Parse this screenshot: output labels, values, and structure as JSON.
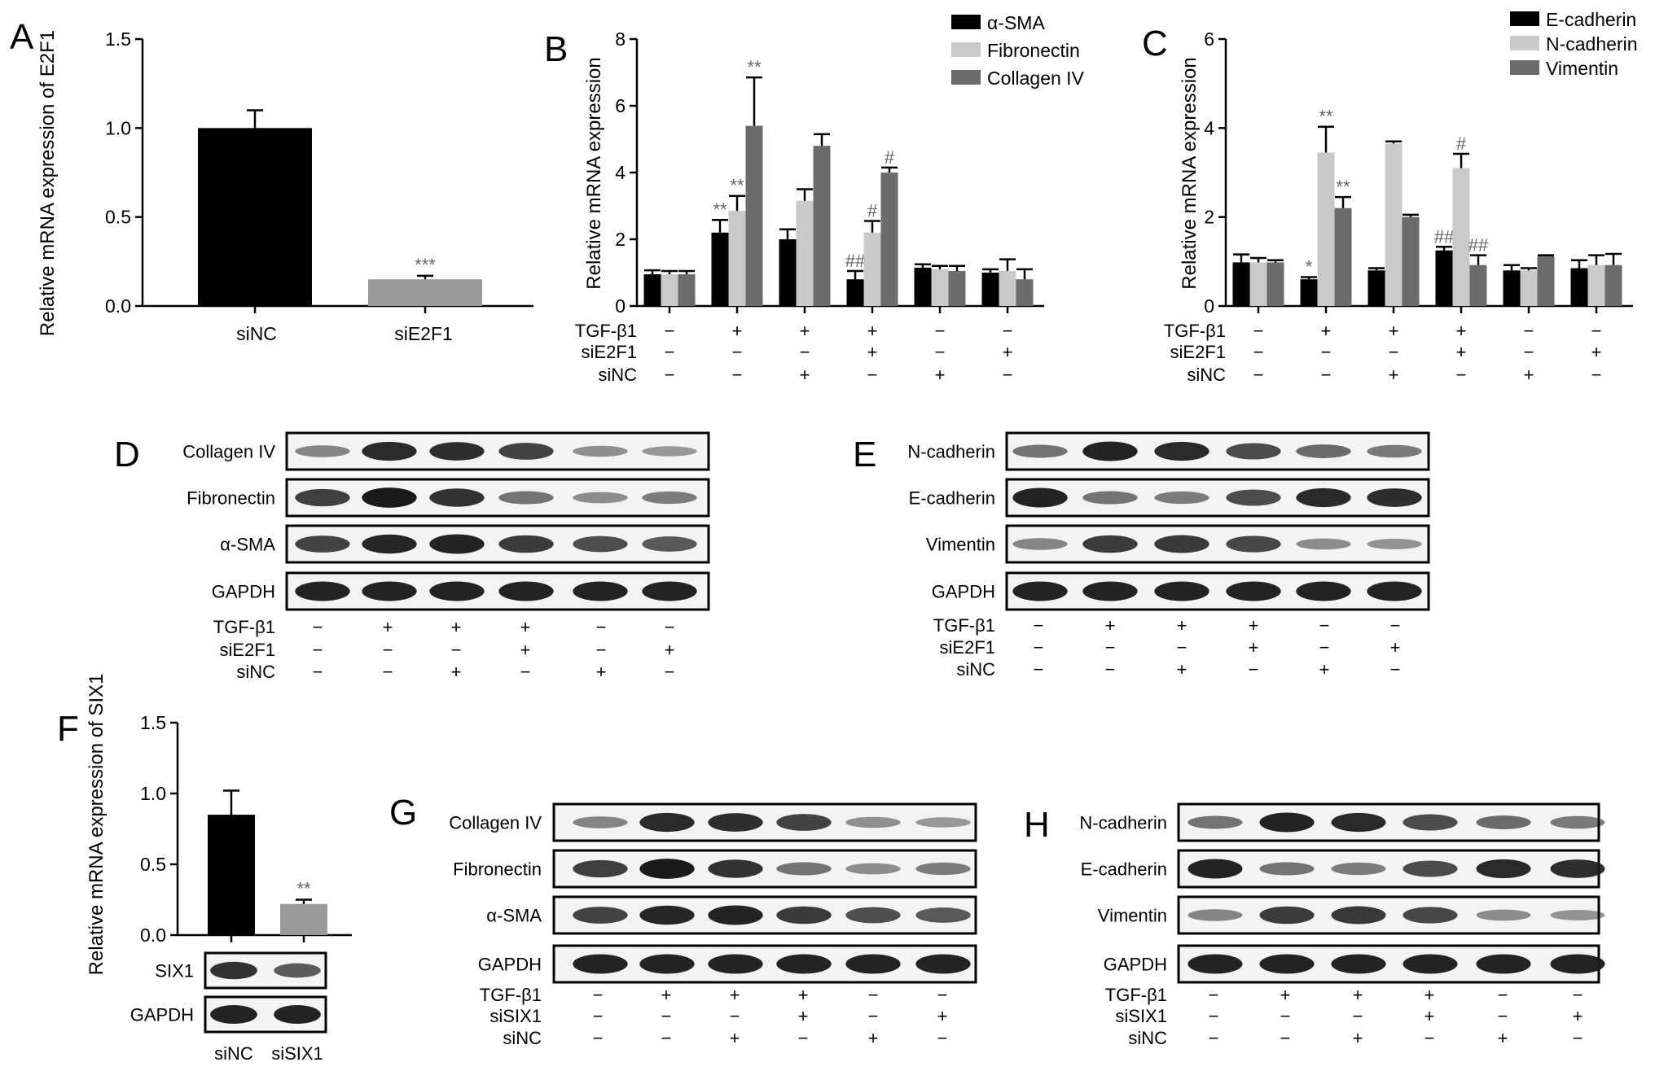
{
  "colors": {
    "black": "#000000",
    "light": "#c9c9c9",
    "mid": "#6b6b6b",
    "sig": "#666666",
    "blotBg": "#f3f3f3",
    "band": "#1a1a1a"
  },
  "treatment_labels": {
    "tgf": "TGF-β1",
    "sie2f1": "siE2F1",
    "sisix1": "siSIX1",
    "sinc": "siNC"
  },
  "conditions_six": {
    "tgf": [
      "−",
      "+",
      "+",
      "+",
      "−",
      "−"
    ],
    "si": [
      "−",
      "−",
      "−",
      "+",
      "−",
      "+"
    ],
    "sinc": [
      "−",
      "−",
      "+",
      "−",
      "+",
      "−"
    ]
  },
  "panels": {
    "A": {
      "letter": "A",
      "ylabel": "Relative mRNA expression of E2F1",
      "yticks": [
        "0.0",
        "0.5",
        "1.0",
        "1.5"
      ],
      "sig": "***"
    },
    "B": {
      "letter": "B",
      "ylabel": "Relative mRNA expression",
      "yticks": [
        "0",
        "2",
        "4",
        "6",
        "8"
      ],
      "legend": [
        "α-SMA",
        "Fibronectin",
        "Collagen IV"
      ]
    },
    "C": {
      "letter": "C",
      "ylabel": "Relative mRNA expression",
      "yticks": [
        "0",
        "2",
        "4",
        "6"
      ],
      "legend": [
        "E-cadherin",
        "N-cadherin",
        "Vimentin"
      ]
    },
    "D": {
      "letter": "D",
      "blots": [
        "Collagen IV",
        "Fibronectin",
        "α-SMA",
        "GAPDH"
      ]
    },
    "E": {
      "letter": "E",
      "blots": [
        "N-cadherin",
        "E-cadherin",
        "Vimentin",
        "GAPDH"
      ]
    },
    "F": {
      "letter": "F",
      "ylabel": "Relative mRNA expression of SIX1",
      "yticks": [
        "0.0",
        "0.5",
        "1.0",
        "1.5"
      ],
      "sig": "**",
      "blots": [
        "SIX1",
        "GAPDH"
      ],
      "groups": [
        "siNC",
        "siSIX1"
      ]
    },
    "G": {
      "letter": "G",
      "blots": [
        "Collagen IV",
        "Fibronectin",
        "α-SMA",
        "GAPDH"
      ]
    },
    "H": {
      "letter": "H",
      "blots": [
        "N-cadherin",
        "E-cadherin",
        "Vimentin",
        "GAPDH"
      ]
    }
  },
  "chart_data": [
    {
      "panel": "A",
      "type": "bar",
      "categories": [
        "siNC",
        "siE2F1"
      ],
      "values": [
        1.0,
        0.15
      ],
      "errors": [
        0.1,
        0.02
      ],
      "ylim": [
        0,
        1.5
      ],
      "ylabel": "Relative mRNA expression of E2F1",
      "annotations": [
        "",
        "***"
      ]
    },
    {
      "panel": "B",
      "type": "bar",
      "categories": [
        "1",
        "2",
        "3",
        "4",
        "5",
        "6"
      ],
      "ylim": [
        0,
        8
      ],
      "ylabel": "Relative mRNA expression",
      "series": [
        {
          "name": "α-SMA",
          "values": [
            0.95,
            2.2,
            2.0,
            0.8,
            1.15,
            1.0
          ],
          "errors": [
            0.12,
            0.38,
            0.3,
            0.25,
            0.1,
            0.1
          ],
          "annotations": [
            "",
            "**",
            "",
            "##",
            "",
            ""
          ]
        },
        {
          "name": "Fibronectin",
          "values": [
            0.95,
            2.85,
            3.15,
            2.2,
            1.1,
            1.05
          ],
          "errors": [
            0.1,
            0.45,
            0.35,
            0.35,
            0.1,
            0.35
          ],
          "annotations": [
            "",
            "**",
            "",
            "#",
            "",
            ""
          ]
        },
        {
          "name": "Collagen IV",
          "values": [
            0.95,
            5.4,
            4.8,
            4.0,
            1.05,
            0.8
          ],
          "errors": [
            0.1,
            1.45,
            0.35,
            0.15,
            0.15,
            0.3
          ],
          "annotations": [
            "",
            "**",
            "",
            "#",
            "",
            ""
          ]
        }
      ]
    },
    {
      "panel": "C",
      "type": "bar",
      "categories": [
        "1",
        "2",
        "3",
        "4",
        "5",
        "6"
      ],
      "ylim": [
        0,
        6
      ],
      "ylabel": "Relative mRNA expression",
      "series": [
        {
          "name": "E-cadherin",
          "values": [
            0.98,
            0.6,
            0.8,
            1.25,
            0.8,
            0.85
          ],
          "errors": [
            0.18,
            0.05,
            0.05,
            0.08,
            0.12,
            0.18
          ],
          "annotations": [
            "",
            "*",
            "",
            "##",
            "",
            ""
          ]
        },
        {
          "name": "N-cadherin",
          "values": [
            0.98,
            3.45,
            3.65,
            3.1,
            0.8,
            0.92
          ],
          "errors": [
            0.1,
            0.58,
            0.05,
            0.32,
            0.05,
            0.22
          ],
          "annotations": [
            "",
            "**",
            "",
            "#",
            "",
            ""
          ]
        },
        {
          "name": "Vimentin",
          "values": [
            0.98,
            2.2,
            2.0,
            0.92,
            1.12,
            0.92
          ],
          "errors": [
            0.05,
            0.25,
            0.05,
            0.22,
            0.02,
            0.25
          ],
          "annotations": [
            "",
            "**",
            "",
            "##",
            "",
            ""
          ]
        }
      ]
    },
    {
      "panel": "F",
      "type": "bar",
      "categories": [
        "siNC",
        "siSIX1"
      ],
      "values": [
        0.85,
        0.22
      ],
      "errors": [
        0.17,
        0.03
      ],
      "ylim": [
        0,
        1.5
      ],
      "ylabel": "Relative mRNA expression of SIX1",
      "annotations": [
        "",
        "**"
      ]
    }
  ]
}
